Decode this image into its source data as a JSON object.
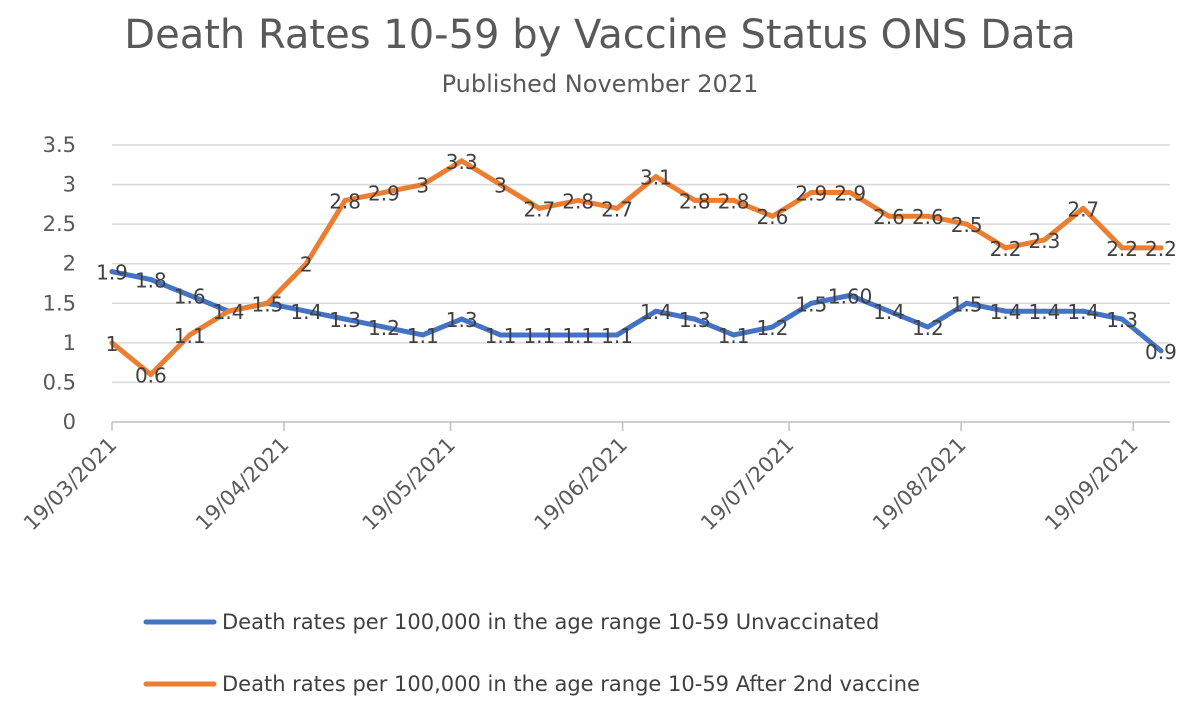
{
  "chart_data": {
    "type": "line",
    "title": "Death Rates 10-59  by Vaccine Status ONS Data",
    "subtitle": "Published November 2021",
    "xlabel": "",
    "ylabel": "",
    "ylim": [
      0,
      3.5
    ],
    "yticks": [
      "0",
      "0.5",
      "1",
      "1.5",
      "2",
      "2.5",
      "3",
      "3.5"
    ],
    "xticks": [
      "19/03/2021",
      "19/04/2021",
      "19/05/2021",
      "19/06/2021",
      "19/07/2021",
      "19/08/2021",
      "19/09/2021"
    ],
    "x": [
      "19/03/2021",
      "26/03/2021",
      "02/04/2021",
      "09/04/2021",
      "16/04/2021",
      "23/04/2021",
      "30/04/2021",
      "07/05/2021",
      "14/05/2021",
      "21/05/2021",
      "28/05/2021",
      "04/06/2021",
      "11/06/2021",
      "18/06/2021",
      "25/06/2021",
      "02/07/2021",
      "09/07/2021",
      "16/07/2021",
      "23/07/2021",
      "30/07/2021",
      "06/08/2021",
      "13/08/2021",
      "20/08/2021",
      "27/08/2021",
      "03/09/2021",
      "10/09/2021",
      "17/09/2021",
      "24/09/2021"
    ],
    "grid": true,
    "legend_position": "bottom",
    "series": [
      {
        "name": "Death rates per 100,000 in the age range 10-59 Unvaccinated",
        "color": "#4472c4",
        "values": [
          1.9,
          1.8,
          1.6,
          1.4,
          1.5,
          1.4,
          1.3,
          1.2,
          1.1,
          1.3,
          1.1,
          1.1,
          1.1,
          1.1,
          1.4,
          1.3,
          1.1,
          1.2,
          1.5,
          1.6,
          1.4,
          1.2,
          1.5,
          1.4,
          1.4,
          1.4,
          1.3,
          0.9
        ],
        "labels": [
          "1.9",
          "1.8",
          "1.6",
          "1.4",
          "1.5",
          "1.4",
          "1.3",
          "1.2",
          "1.1",
          "1.3",
          "1.1",
          "1.1",
          "1.1",
          "1.1",
          "1.4",
          "1.3",
          "1.1",
          "1.2",
          "1.5",
          "1.60",
          "1.4",
          "1.2",
          "1.5",
          "1.4",
          "1.4",
          "1.4",
          "1.3",
          "0.9"
        ]
      },
      {
        "name": "Death rates per 100,000 in the age range 10-59 After 2nd  vaccine",
        "color": "#ed7d31",
        "values": [
          1.0,
          0.6,
          1.1,
          1.4,
          1.5,
          2.0,
          2.8,
          2.9,
          3.0,
          3.3,
          3.0,
          2.7,
          2.8,
          2.7,
          3.1,
          2.8,
          2.8,
          2.6,
          2.9,
          2.9,
          2.6,
          2.6,
          2.5,
          2.2,
          2.3,
          2.7,
          2.2,
          2.2
        ],
        "labels": [
          "1",
          "0.6",
          "1.1",
          "",
          "",
          "2",
          "2.8",
          "2.9",
          "3",
          "3.3",
          "3",
          "2.7",
          "2.8",
          "2.7",
          "3.1",
          "2.8",
          "2.8",
          "2.6",
          "2.9",
          "2.9",
          "2.6",
          "2.6",
          "2.5",
          "2.2",
          "2.3",
          "2.7",
          "2.2",
          "2.2"
        ]
      }
    ]
  }
}
